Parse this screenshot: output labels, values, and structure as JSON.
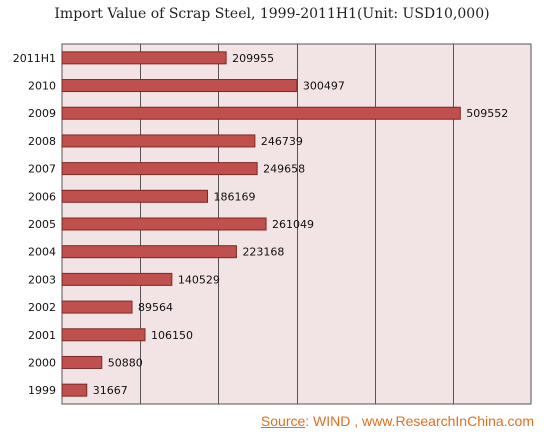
{
  "title": "Import Value of Scrap Steel, 1999-2011H1(Unit: USD10,000)",
  "source": {
    "label": "Source",
    "text": ": WIND , www.ResearchInChina.com"
  },
  "colors": {
    "bar": "#c0504d",
    "bar_border": "#7a2a26",
    "plot_bg": "#f2e4e4",
    "grid": "#555555"
  },
  "chart_data": {
    "type": "bar",
    "orientation": "horizontal",
    "categories": [
      "2011H1",
      "2010",
      "2009",
      "2008",
      "2007",
      "2006",
      "2005",
      "2004",
      "2003",
      "2002",
      "2001",
      "2000",
      "1999"
    ],
    "values": [
      209955,
      300497,
      509552,
      246739,
      249658,
      186169,
      261049,
      223168,
      140529,
      89564,
      106150,
      50880,
      31667
    ],
    "title": "Import Value of Scrap Steel, 1999-2011H1(Unit: USD10,000)",
    "xlabel": "",
    "ylabel": "",
    "xlim": [
      0,
      600000
    ],
    "grid": "vertical",
    "legend": "none",
    "data_labels": true
  }
}
